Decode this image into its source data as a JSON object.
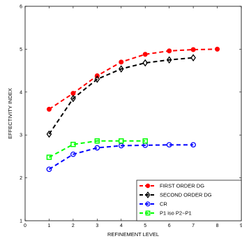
{
  "chart_data": {
    "type": "line",
    "title": "",
    "xlabel": "REFINEMENT LEVEL",
    "ylabel": "EFFECTIVITY INDEX",
    "xlim": [
      0,
      9
    ],
    "ylim": [
      1,
      6
    ],
    "xticks": [
      "0",
      "1",
      "2",
      "3",
      "4",
      "5",
      "6",
      "7",
      "8",
      "9"
    ],
    "yticks": [
      "1",
      "2",
      "3",
      "4",
      "5",
      "6"
    ],
    "grid": false,
    "legend_position": "bottom-right",
    "series": [
      {
        "name": "FIRST ORDER DG",
        "color": "#ff0000",
        "marker": "filled-circle",
        "x": [
          1,
          2,
          3,
          4,
          5,
          6,
          7,
          8
        ],
        "y": [
          3.6,
          3.97,
          4.38,
          4.7,
          4.88,
          4.96,
          4.99,
          5.0
        ]
      },
      {
        "name": "SECOND ORDER DG",
        "color": "#000000",
        "marker": "diamond",
        "x": [
          1,
          2,
          3,
          4,
          5,
          6,
          7
        ],
        "y": [
          3.02,
          3.85,
          4.3,
          4.54,
          4.68,
          4.75,
          4.8
        ]
      },
      {
        "name": "CR",
        "color": "#0000ff",
        "marker": "circle",
        "x": [
          1,
          2,
          3,
          4,
          5,
          6,
          7
        ],
        "y": [
          2.2,
          2.55,
          2.7,
          2.75,
          2.76,
          2.77,
          2.77
        ]
      },
      {
        "name": "P1 iso P2−P1",
        "color": "#00ff00",
        "marker": "square",
        "x": [
          1,
          2,
          3,
          4,
          5
        ],
        "y": [
          2.48,
          2.78,
          2.86,
          2.86,
          2.86
        ]
      }
    ]
  }
}
